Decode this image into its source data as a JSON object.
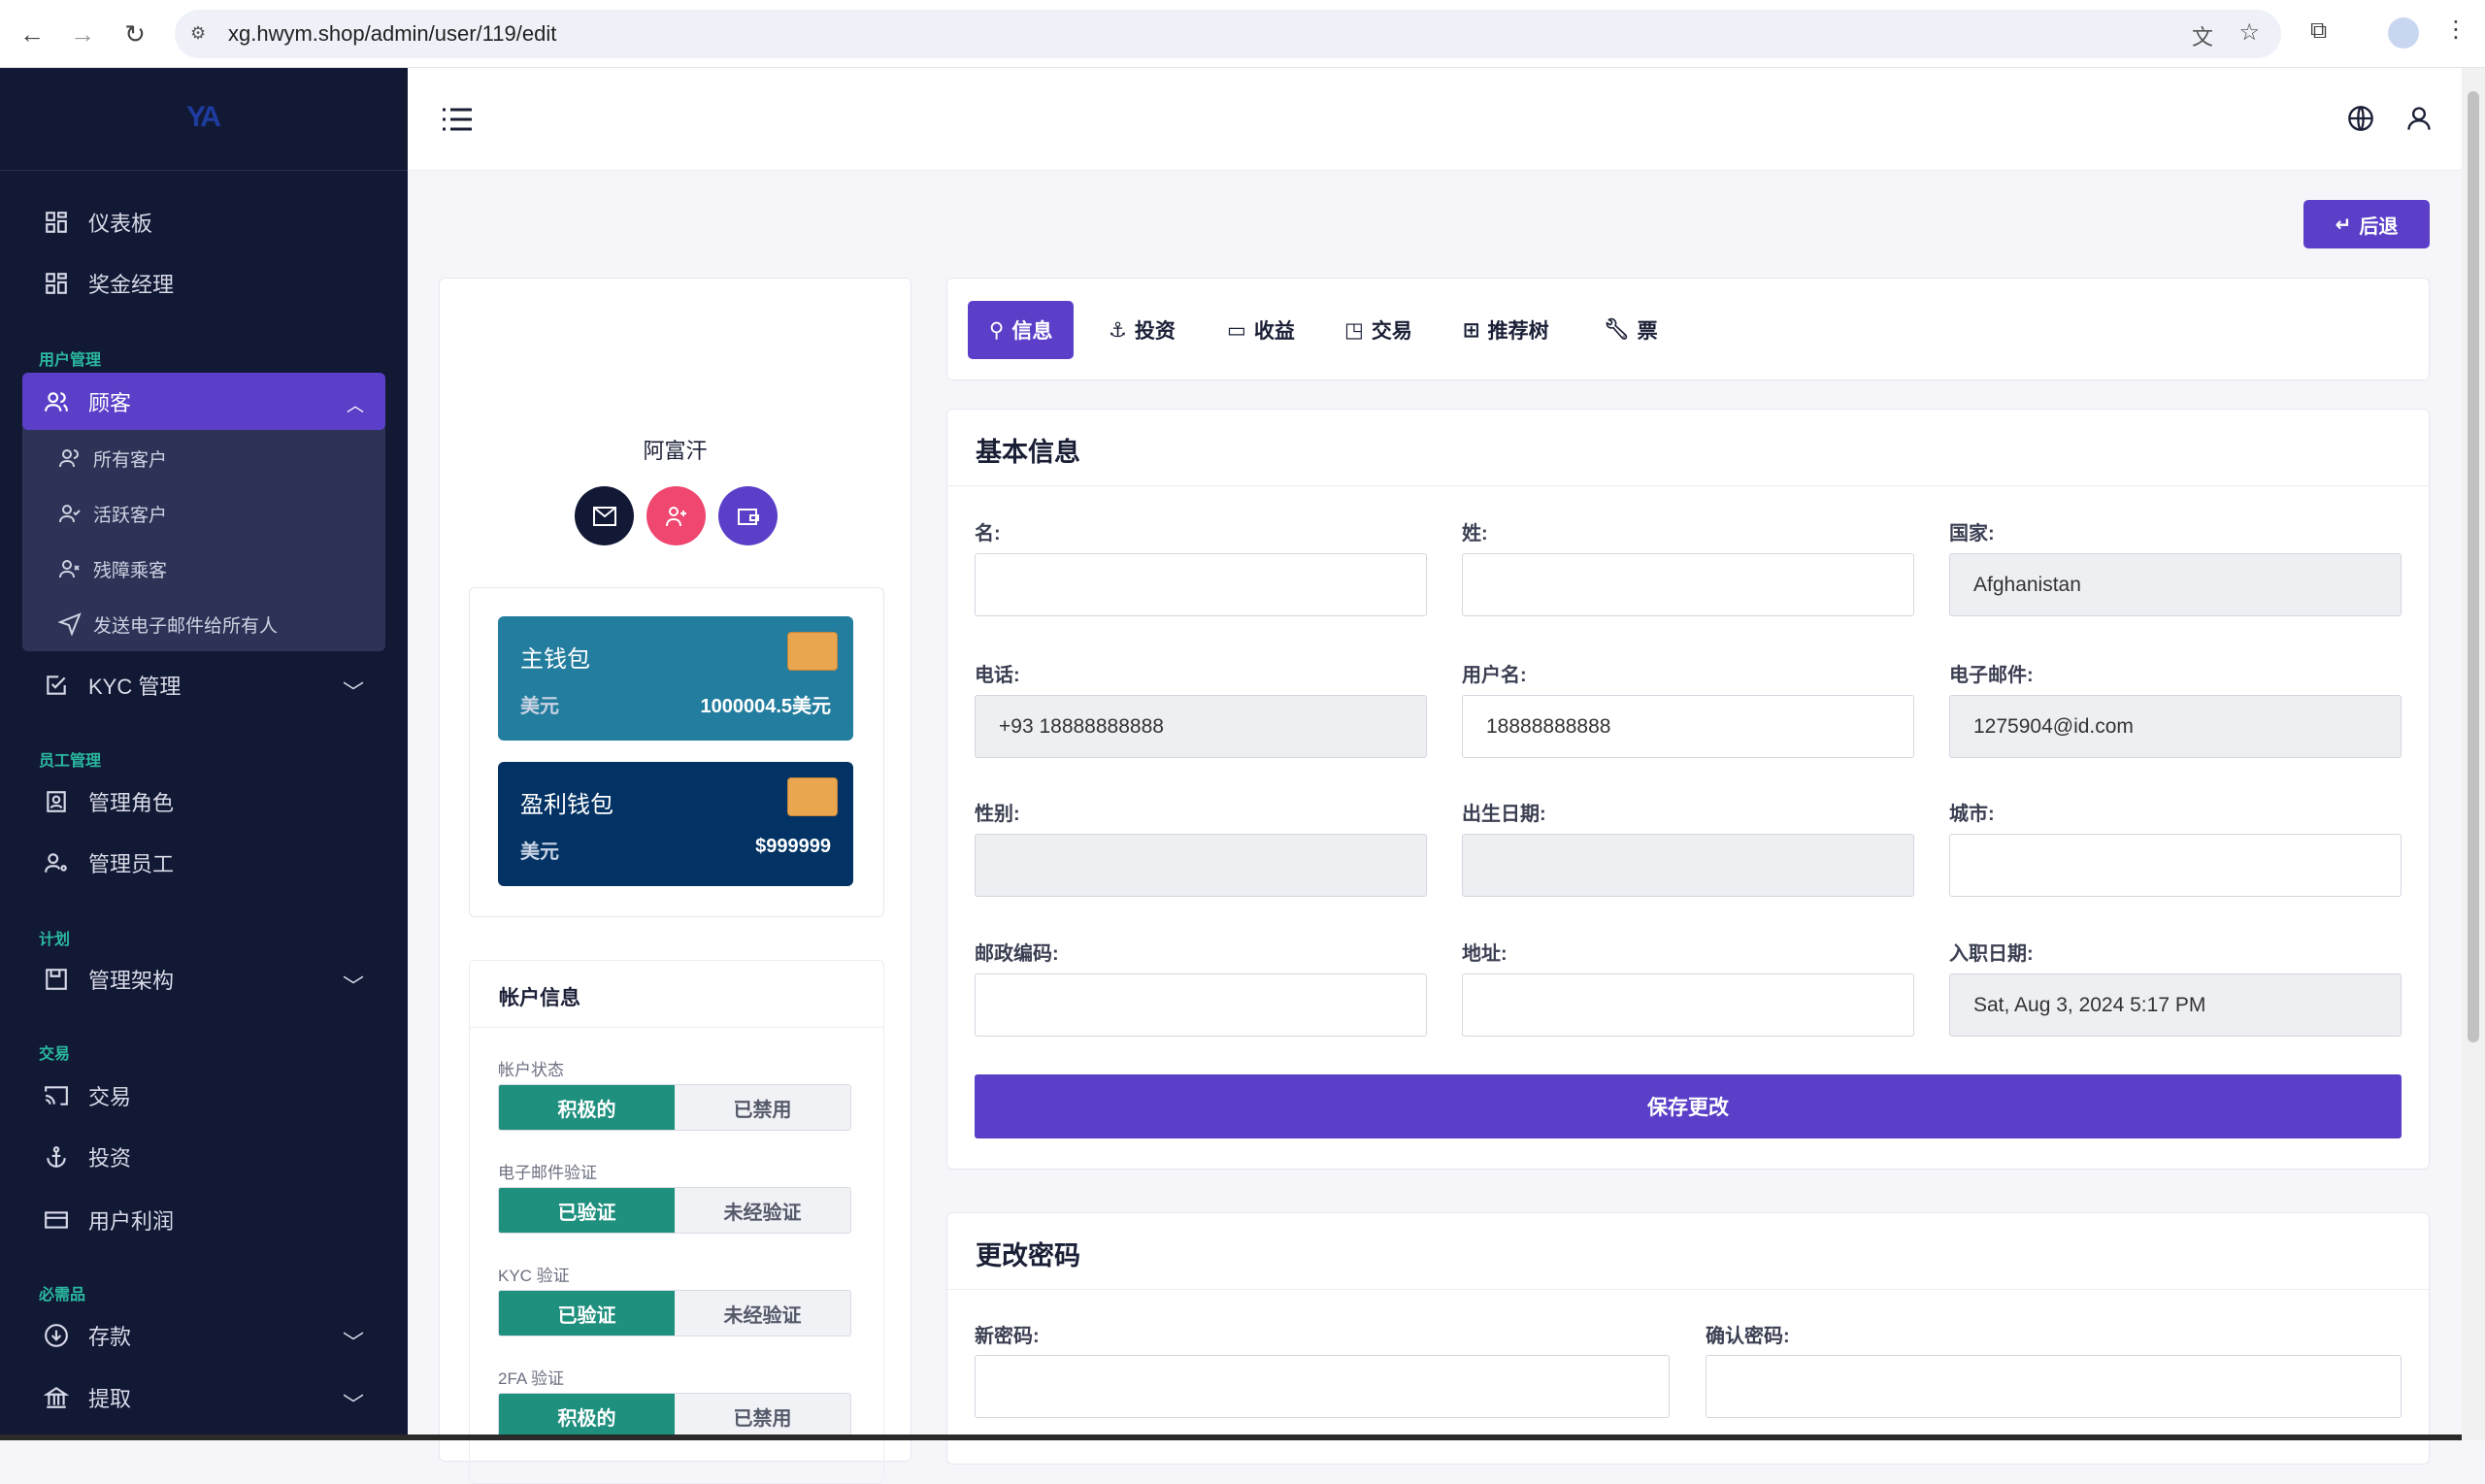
{
  "browser": {
    "url": "xg.hwym.shop/admin/user/119/edit"
  },
  "sidebar": {
    "logo_text": "YA",
    "items_top": [
      {
        "label": "仪表板",
        "icon": "grid-icon"
      },
      {
        "label": "奖金经理",
        "icon": "grid-icon"
      }
    ],
    "sections": {
      "user_mgmt": "用户管理",
      "staff_mgmt": "员工管理",
      "plan": "计划",
      "trade": "交易",
      "essentials": "必需品"
    },
    "customers": {
      "label": "顾客",
      "sub": [
        "所有客户",
        "活跃客户",
        "残障乘客",
        "发送电子邮件给所有人"
      ]
    },
    "kyc": "KYC 管理",
    "roles": "管理角色",
    "staff": "管理员工",
    "structure": "管理架构",
    "trade": "交易",
    "invest": "投资",
    "profit": "用户利润",
    "deposit": "存款",
    "withdraw": "提取"
  },
  "header": {
    "back_label": "后退"
  },
  "profile": {
    "name": "阿富汗",
    "wallets": [
      {
        "title": "主钱包",
        "currency": "美元",
        "value": "1000004.5美元",
        "color": "#237d9e"
      },
      {
        "title": "盈利钱包",
        "currency": "美元",
        "value": "$999999",
        "color": "#033364"
      }
    ],
    "account": {
      "title": "帐户信息",
      "rows": [
        {
          "label": "帐户状态",
          "on": "积极的",
          "off": "已禁用"
        },
        {
          "label": "电子邮件验证",
          "on": "已验证",
          "off": "未经验证"
        },
        {
          "label": "KYC 验证",
          "on": "已验证",
          "off": "未经验证"
        },
        {
          "label": "2FA 验证",
          "on": "积极的",
          "off": "已禁用"
        }
      ]
    }
  },
  "tabs": [
    {
      "label": "信息",
      "icon": "user-icon"
    },
    {
      "label": "投资",
      "icon": "anchor-icon"
    },
    {
      "label": "收益",
      "icon": "card-icon"
    },
    {
      "label": "交易",
      "icon": "cast-icon"
    },
    {
      "label": "推荐树",
      "icon": "hierarchy-icon"
    },
    {
      "label": "票",
      "icon": "wrench-icon"
    }
  ],
  "basic": {
    "title": "基本信息",
    "fields": [
      {
        "label": "名:",
        "value": "",
        "readonly": false
      },
      {
        "label": "姓:",
        "value": "",
        "readonly": false
      },
      {
        "label": "国家:",
        "value": "Afghanistan",
        "readonly": true
      },
      {
        "label": "电话:",
        "value": "+93 18888888888",
        "readonly": true
      },
      {
        "label": "用户名:",
        "value": "18888888888",
        "readonly": false
      },
      {
        "label": "电子邮件:",
        "value": "1275904@id.com",
        "readonly": true
      },
      {
        "label": "性别:",
        "value": "",
        "readonly": true
      },
      {
        "label": "出生日期:",
        "value": "",
        "readonly": true
      },
      {
        "label": "城市:",
        "value": "",
        "readonly": false
      },
      {
        "label": "邮政编码:",
        "value": "",
        "readonly": false
      },
      {
        "label": "地址:",
        "value": "",
        "readonly": false
      },
      {
        "label": "入职日期:",
        "value": "Sat, Aug 3, 2024 5:17 PM",
        "readonly": true
      }
    ],
    "save_label": "保存更改"
  },
  "password": {
    "title": "更改密码",
    "new_label": "新密码:",
    "confirm_label": "确认密码:"
  },
  "colors": {
    "accent": "#5b3fc8",
    "sidebar": "#121935",
    "success": "#1f8f7e",
    "pink": "#ef476f"
  }
}
